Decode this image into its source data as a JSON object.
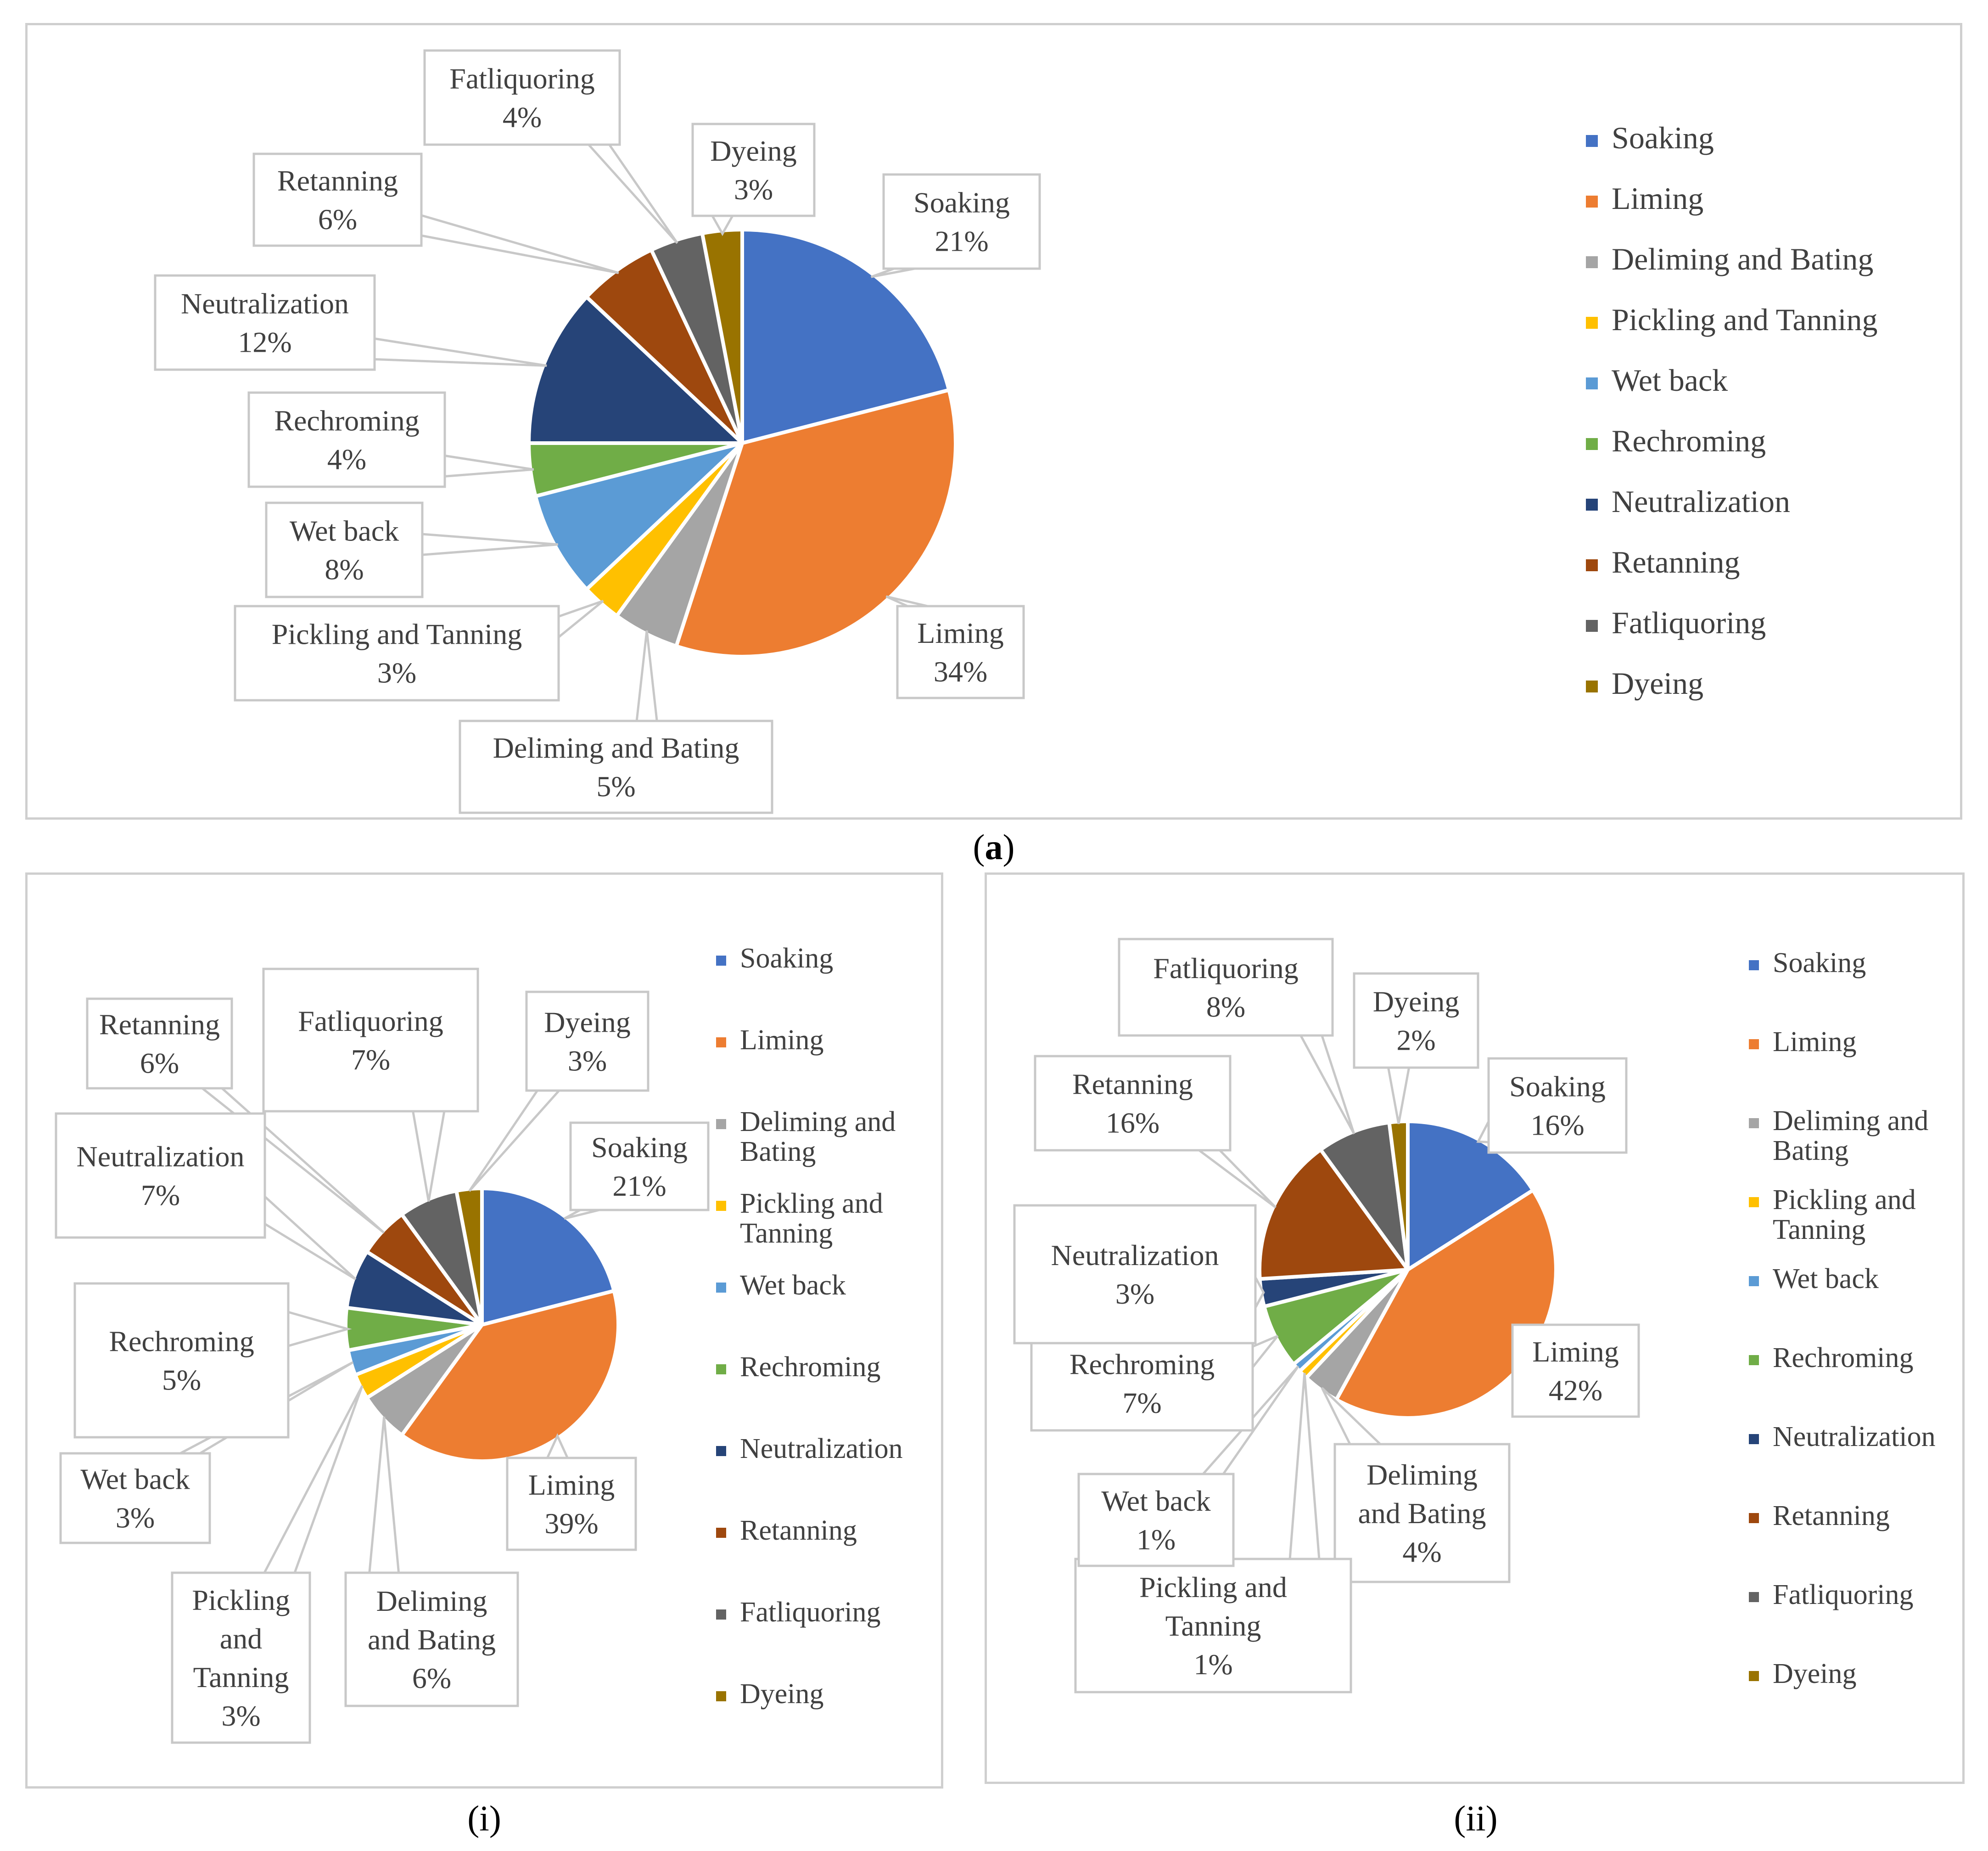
{
  "figure": {
    "caption_a_open": "(",
    "caption_a_letter": "a",
    "caption_a_close": ")",
    "caption_i": "(i)",
    "caption_ii": "(ii)"
  },
  "colors": {
    "Soaking": "#4472C4",
    "Liming": "#ED7D31",
    "Deliming and Bating": "#A5A5A5",
    "Pickling and Tanning": "#FFC000",
    "Wet back": "#5B9BD5",
    "Rechroming": "#70AD47",
    "Neutralization": "#264478",
    "Retanning": "#9E480E",
    "Fatliquoring": "#636363",
    "Dyeing": "#997300"
  },
  "chart_data": [
    {
      "id": "a",
      "type": "pie",
      "title": "",
      "legend_position": "right",
      "categories": [
        "Soaking",
        "Liming",
        "Deliming and Bating",
        "Pickling and Tanning",
        "Wet back",
        "Rechroming",
        "Neutralization",
        "Retanning",
        "Fatliquoring",
        "Dyeing"
      ],
      "legend_labels": [
        [
          "Soaking"
        ],
        [
          "Liming"
        ],
        [
          "Deliming and Bating"
        ],
        [
          "Pickling and Tanning"
        ],
        [
          "Wet back"
        ],
        [
          "Rechroming"
        ],
        [
          "Neutralization"
        ],
        [
          "Retanning"
        ],
        [
          "Fatliquoring"
        ],
        [
          "Dyeing"
        ]
      ],
      "values": [
        21,
        34,
        5,
        3,
        8,
        4,
        12,
        6,
        4,
        3
      ],
      "data_labels": [
        [
          "Soaking",
          "21%"
        ],
        [
          "Liming",
          "34%"
        ],
        [
          "Deliming and Bating",
          "5%"
        ],
        [
          "Pickling and Tanning",
          "3%"
        ],
        [
          "Wet back",
          "8%"
        ],
        [
          "Rechroming",
          "4%"
        ],
        [
          "Neutralization",
          "12%"
        ],
        [
          "Retanning",
          "6%"
        ],
        [
          "Fatliquoring",
          "4%"
        ],
        [
          "Dyeing",
          "3%"
        ]
      ]
    },
    {
      "id": "i",
      "type": "pie",
      "title": "",
      "legend_position": "right",
      "categories": [
        "Soaking",
        "Liming",
        "Deliming and Bating",
        "Pickling and Tanning",
        "Wet back",
        "Rechroming",
        "Neutralization",
        "Retanning",
        "Fatliquoring",
        "Dyeing"
      ],
      "legend_labels": [
        [
          "Soaking"
        ],
        [
          "Liming"
        ],
        [
          "Deliming and",
          "Bating"
        ],
        [
          "Pickling and",
          "Tanning"
        ],
        [
          "Wet back"
        ],
        [
          "Rechroming"
        ],
        [
          "Neutralization"
        ],
        [
          "Retanning"
        ],
        [
          "Fatliquoring"
        ],
        [
          "Dyeing"
        ]
      ],
      "values": [
        21,
        39,
        6,
        3,
        3,
        5,
        7,
        6,
        7,
        3
      ],
      "data_labels": [
        [
          "Soaking",
          "21%"
        ],
        [
          "Liming",
          "39%"
        ],
        [
          "Deliming",
          "and Bating",
          "6%"
        ],
        [
          "Pickling",
          "and",
          "Tanning",
          "3%"
        ],
        [
          "Wet back",
          "3%"
        ],
        [
          "Rechroming",
          "5%"
        ],
        [
          "Neutralization",
          "7%"
        ],
        [
          "Retanning",
          "6%"
        ],
        [
          "Fatliquoring",
          "7%"
        ],
        [
          "Dyeing",
          "3%"
        ]
      ]
    },
    {
      "id": "ii",
      "type": "pie",
      "title": "",
      "legend_position": "right",
      "categories": [
        "Soaking",
        "Liming",
        "Deliming and Bating",
        "Pickling and Tanning",
        "Wet back",
        "Rechroming",
        "Neutralization",
        "Retanning",
        "Fatliquoring",
        "Dyeing"
      ],
      "legend_labels": [
        [
          "Soaking"
        ],
        [
          "Liming"
        ],
        [
          "Deliming and",
          "Bating"
        ],
        [
          "Pickling and",
          "Tanning"
        ],
        [
          "Wet back"
        ],
        [
          "Rechroming"
        ],
        [
          "Neutralization"
        ],
        [
          "Retanning"
        ],
        [
          "Fatliquoring"
        ],
        [
          "Dyeing"
        ]
      ],
      "values": [
        16,
        42,
        4,
        1,
        1,
        7,
        3,
        16,
        8,
        2
      ],
      "data_labels": [
        [
          "Soaking",
          "16%"
        ],
        [
          "Liming",
          "42%"
        ],
        [
          "Deliming",
          "and Bating",
          "4%"
        ],
        [
          "Pickling and",
          "Tanning",
          "1%"
        ],
        [
          "Wet back",
          "1%"
        ],
        [
          "Rechroming",
          "7%"
        ],
        [
          "Neutralization",
          "3%"
        ],
        [
          "Retanning",
          "16%"
        ],
        [
          "Fatliquoring",
          "8%"
        ],
        [
          "Dyeing",
          "2%"
        ]
      ]
    }
  ]
}
